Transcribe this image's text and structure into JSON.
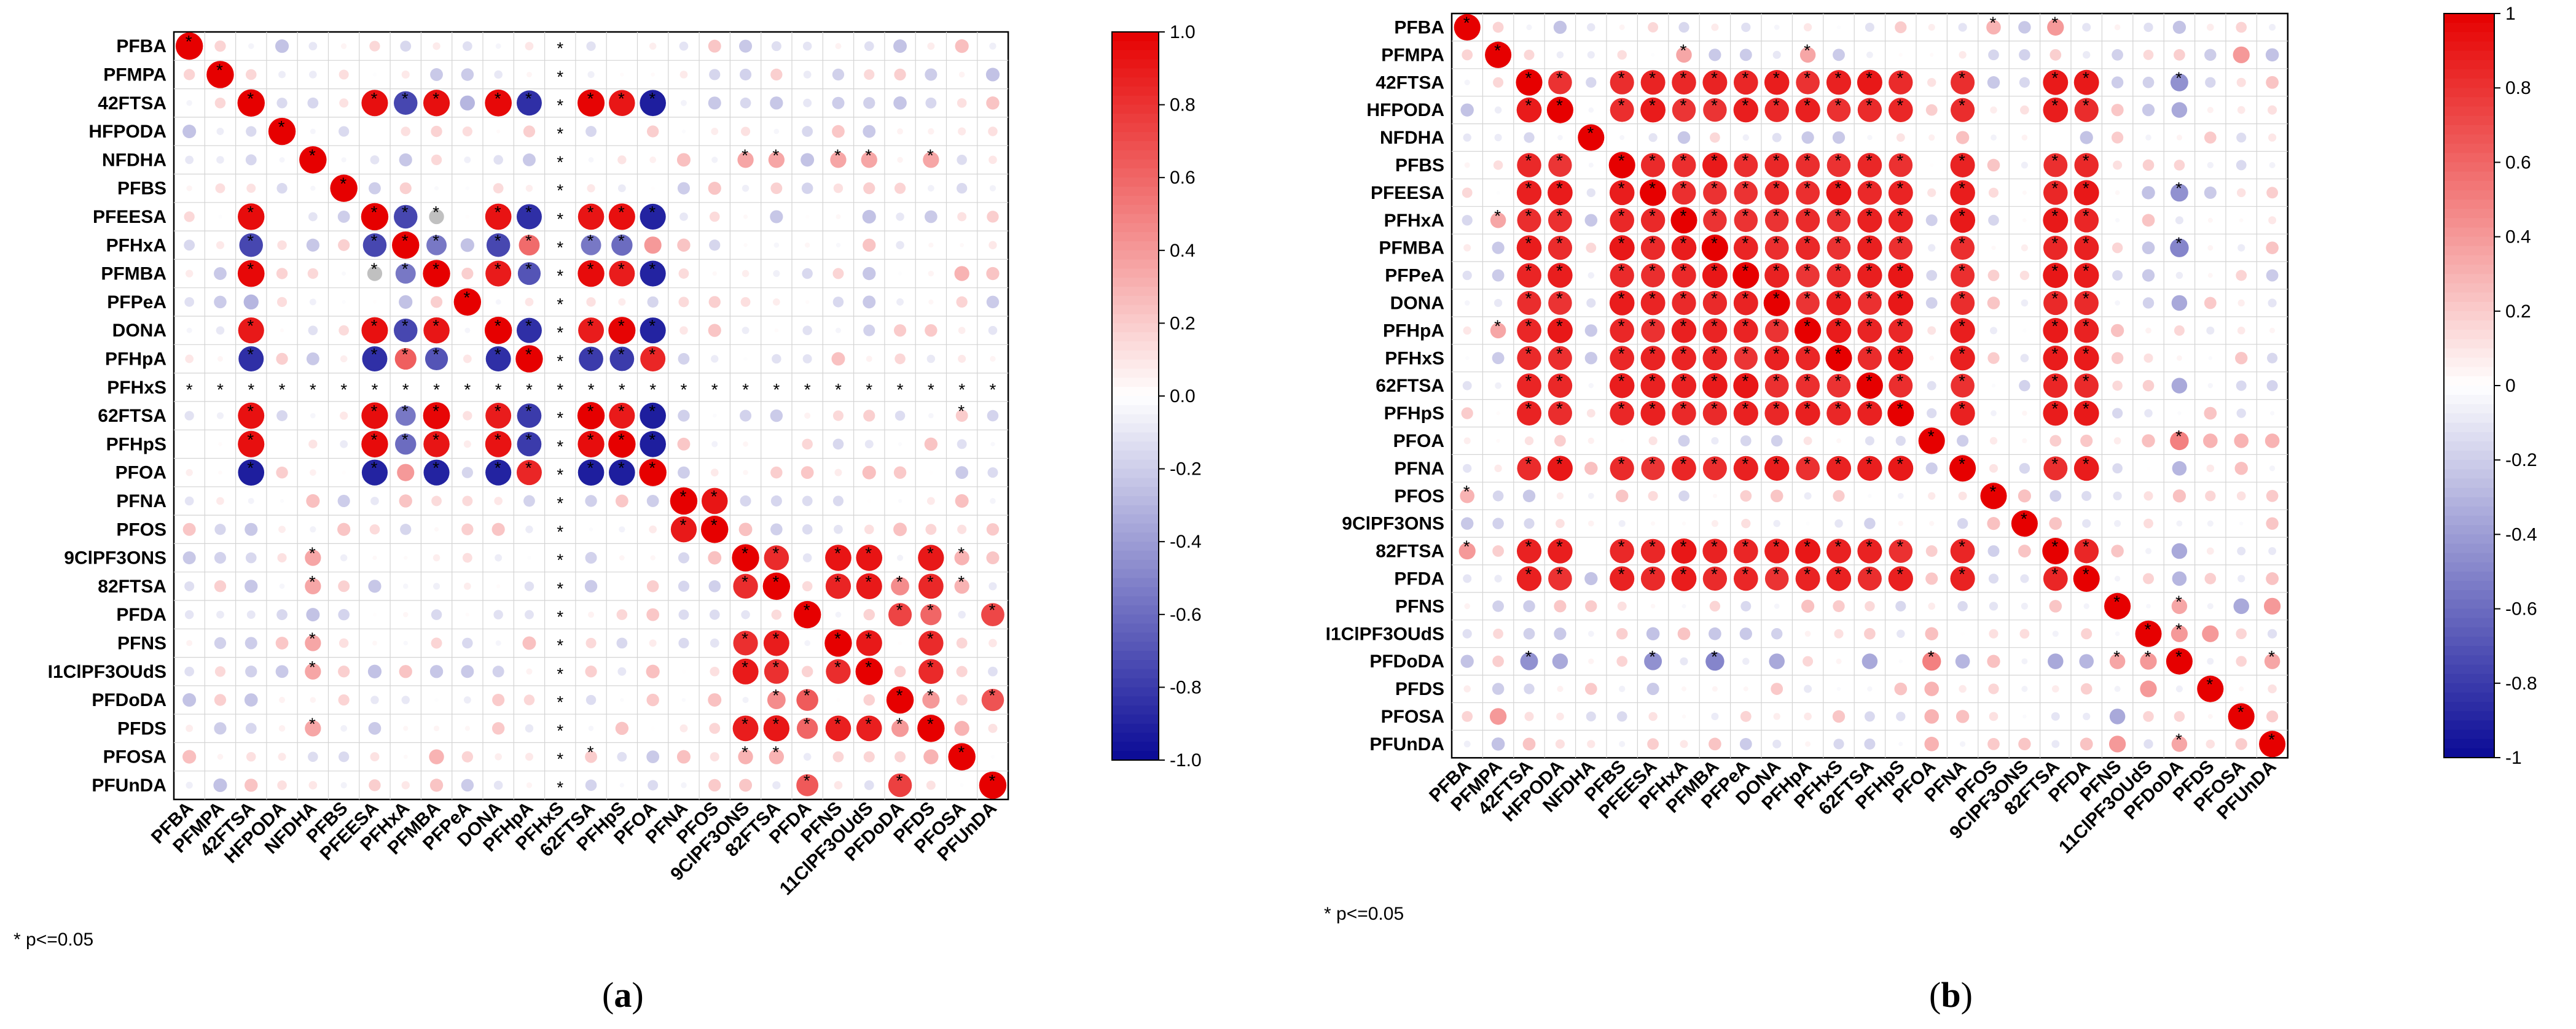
{
  "figure": {
    "panels": [
      {
        "label_open": "(",
        "label_letter": "a",
        "label_close": ")"
      },
      {
        "label_open": "(",
        "label_letter": "b",
        "label_close": ")"
      }
    ]
  },
  "chart_data": [
    {
      "type": "heatmap",
      "title": "",
      "variant": "correlation-circle-matrix",
      "footnote": "* p<=0.05",
      "colorbar": {
        "min": -1.0,
        "max": 1.0,
        "ticks": [
          "1.0",
          "0.8",
          "0.6",
          "0.4",
          "0.2",
          "0.0",
          "-0.2",
          "-0.4",
          "-0.6",
          "-0.8",
          "-1.0"
        ],
        "colors": {
          "neg": "#0a0a96",
          "zero": "#ffffff",
          "pos": "#e60000"
        }
      },
      "labels": [
        "PFBA",
        "PFMPA",
        "42FTSA",
        "HFPODA",
        "NFDHA",
        "PFBS",
        "PFEESA",
        "PFHxA",
        "PFMBA",
        "PFPeA",
        "DONA",
        "PFHpA",
        "PFHxS",
        "62FTSA",
        "PFHpS",
        "PFOA",
        "PFNA",
        "PFOS",
        "9ClPF3ONS",
        "82FTSA",
        "PFDA",
        "PFNS",
        "11ClPF3OUdS",
        "PFDoDA",
        "PFDS",
        "PFOSA",
        "PFUnDA"
      ],
      "row_labels": [
        "PFBA",
        "PFMPA",
        "42FTSA",
        "HFPODA",
        "NFDHA",
        "PFBS",
        "PFEESA",
        "PFHxA",
        "PFMBA",
        "PFPeA",
        "DONA",
        "PFHpA",
        "PFHxS",
        "62FTSA",
        "PFHpS",
        "PFOA",
        "PFNA",
        "PFOS",
        "9ClPF3ONS",
        "82FTSA",
        "PFDA",
        "PFNS",
        "I1ClPF3OUdS",
        "PFDoDA",
        "PFDS",
        "PFOSA",
        "PFUnDA"
      ],
      "col_labels": [
        "PFBA",
        "PFMPA",
        "42FTSA",
        "HFPODA",
        "NFDHA",
        "PFBS",
        "PFEESA",
        "PFHxA",
        "PFMBA",
        "PFPeA",
        "DONA",
        "PFHpA",
        "PFHxS",
        "62FTSA",
        "PFHpS",
        "PFOA",
        "PFNA",
        "PFOS",
        "9ClPF3ONS",
        "82FTSA",
        "PFDA",
        "PFNS",
        "11ClPF3OUdS",
        "PFDoDA",
        "PFDS",
        "PFOSA",
        "PFUnDA"
      ],
      "na_labels": [
        "PFHxS"
      ],
      "groups": [
        {
          "members": [
            "42FTSA",
            "PFEESA",
            "PFMBA",
            "DONA",
            "62FTSA",
            "PFHpS"
          ],
          "within": 0.93,
          "significant": true
        },
        {
          "members": [
            "PFHpA",
            "PFHxA"
          ],
          "within": 0.6,
          "significant": true
        },
        {
          "members": [
            "PFOA"
          ],
          "within": 0.9,
          "significant": true
        },
        {
          "members": [
            "PFNA",
            "PFOS"
          ],
          "within": 0.88,
          "significant": true
        },
        {
          "members": [
            "9ClPF3ONS",
            "82FTSA",
            "PFNS",
            "11ClPF3OUdS",
            "PFDS"
          ],
          "within": 0.87,
          "significant": true
        },
        {
          "members": [
            "PFDA",
            "PFDoDA",
            "PFUnDA"
          ],
          "within": 0.7,
          "significant": true
        }
      ],
      "pairs": [
        {
          "a": "PFOA",
          "b": "42FTSA",
          "v": -0.92,
          "s": true
        },
        {
          "a": "PFOA",
          "b": "PFEESA",
          "v": -0.9,
          "s": true
        },
        {
          "a": "PFOA",
          "b": "PFMBA",
          "v": -0.9,
          "s": true
        },
        {
          "a": "PFOA",
          "b": "DONA",
          "v": -0.9,
          "s": true
        },
        {
          "a": "PFOA",
          "b": "62FTSA",
          "v": -0.92,
          "s": true
        },
        {
          "a": "PFOA",
          "b": "PFHpS",
          "v": -0.92,
          "s": true
        },
        {
          "a": "PFOA",
          "b": "PFHxA",
          "v": 0.4,
          "s": false
        },
        {
          "a": "PFOA",
          "b": "PFHpA",
          "v": 0.85,
          "s": true
        },
        {
          "a": "PFHxA",
          "b": "42FTSA",
          "v": -0.75,
          "s": true
        },
        {
          "a": "PFHxA",
          "b": "PFEESA",
          "v": -0.75,
          "s": true
        },
        {
          "a": "PFHxA",
          "b": "PFMBA",
          "v": -0.55,
          "s": true
        },
        {
          "a": "PFHxA",
          "b": "DONA",
          "v": -0.75,
          "s": true
        },
        {
          "a": "PFHxA",
          "b": "62FTSA",
          "v": -0.55,
          "s": true
        },
        {
          "a": "PFHxA",
          "b": "PFHpS",
          "v": -0.6,
          "s": true
        },
        {
          "a": "PFHpA",
          "b": "42FTSA",
          "v": -0.85,
          "s": true
        },
        {
          "a": "PFHpA",
          "b": "PFEESA",
          "v": -0.85,
          "s": true
        },
        {
          "a": "PFHpA",
          "b": "PFMBA",
          "v": -0.7,
          "s": true
        },
        {
          "a": "PFHpA",
          "b": "DONA",
          "v": -0.85,
          "s": true
        },
        {
          "a": "PFHpA",
          "b": "62FTSA",
          "v": -0.8,
          "s": true
        },
        {
          "a": "PFHpA",
          "b": "PFHpS",
          "v": -0.8,
          "s": true
        },
        {
          "a": "PFMBA",
          "b": "PFEESA",
          "v": 0.3,
          "s": true,
          "gray": true
        },
        {
          "a": "PFPeA",
          "b": "42FTSA",
          "v": -0.3,
          "s": false
        },
        {
          "a": "PFPeA",
          "b": "PFHxA",
          "v": -0.25,
          "s": false
        },
        {
          "a": "NFDHA",
          "b": "9ClPF3ONS",
          "v": 0.35,
          "s": true
        },
        {
          "a": "NFDHA",
          "b": "82FTSA",
          "v": 0.35,
          "s": true
        },
        {
          "a": "NFDHA",
          "b": "PFNS",
          "v": 0.35,
          "s": true
        },
        {
          "a": "NFDHA",
          "b": "11ClPF3OUdS",
          "v": 0.35,
          "s": true
        },
        {
          "a": "NFDHA",
          "b": "PFDS",
          "v": 0.35,
          "s": true
        },
        {
          "a": "PFDoDA",
          "b": "82FTSA",
          "v": 0.45,
          "s": true
        },
        {
          "a": "PFDoDA",
          "b": "PFDS",
          "v": 0.4,
          "s": true
        },
        {
          "a": "PFDA",
          "b": "PFDS",
          "v": 0.6,
          "s": true
        },
        {
          "a": "PFOSA",
          "b": "9ClPF3ONS",
          "v": 0.3,
          "s": true
        },
        {
          "a": "PFOSA",
          "b": "82FTSA",
          "v": 0.3,
          "s": true
        },
        {
          "a": "PFOSA",
          "b": "62FTSA",
          "v": 0.2,
          "s": true
        },
        {
          "a": "PFOSA",
          "b": "PFBA",
          "v": 0.25,
          "s": false
        },
        {
          "a": "PFOSA",
          "b": "PFMBA",
          "v": 0.3,
          "s": false
        },
        {
          "a": "PFDS",
          "b": "PFOSA",
          "v": 0.3,
          "s": false
        }
      ]
    },
    {
      "type": "heatmap",
      "title": "",
      "variant": "correlation-circle-matrix",
      "footnote": "* p<=0.05",
      "colorbar": {
        "min": -1,
        "max": 1,
        "ticks": [
          "1",
          "0.8",
          "0.6",
          "0.4",
          "0.2",
          "0",
          "-0.2",
          "-0.4",
          "-0.6",
          "-0.8",
          "-1"
        ],
        "colors": {
          "neg": "#0a0a96",
          "zero": "#ffffff",
          "pos": "#e60000"
        }
      },
      "labels": [
        "PFBA",
        "PFMPA",
        "42FTSA",
        "HFPODA",
        "NFDHA",
        "PFBS",
        "PFEESA",
        "PFHxA",
        "PFMBA",
        "PFPeA",
        "DONA",
        "PFHpA",
        "PFHxS",
        "62FTSA",
        "PFHpS",
        "PFOA",
        "PFNA",
        "PFOS",
        "9ClPF3ONS",
        "82FTSA",
        "PFDA",
        "PFNS",
        "11ClPF3OUdS",
        "PFDoDA",
        "PFDS",
        "PFOSA",
        "PFUnDA"
      ],
      "row_labels": [
        "PFBA",
        "PFMPA",
        "42FTSA",
        "HFPODA",
        "NFDHA",
        "PFBS",
        "PFEESA",
        "PFHxA",
        "PFMBA",
        "PFPeA",
        "DONA",
        "PFHpA",
        "PFHxS",
        "62FTSA",
        "PFHpS",
        "PFOA",
        "PFNA",
        "PFOS",
        "9ClPF3ONS",
        "82FTSA",
        "PFDA",
        "PFNS",
        "I1ClPF3OUdS",
        "PFDoDA",
        "PFDS",
        "PFOSA",
        "PFUnDA"
      ],
      "col_labels": [
        "PFBA",
        "PFMPA",
        "42FTSA",
        "HFPODA",
        "NFDHA",
        "PFBS",
        "PFEESA",
        "PFHxA",
        "PFMBA",
        "PFPeA",
        "DONA",
        "PFHpA",
        "PFHxS",
        "62FTSA",
        "PFHpS",
        "PFOA",
        "PFNA",
        "PFOS",
        "9ClPF3ONS",
        "82FTSA",
        "PFDA",
        "PFNS",
        "11ClPF3OUdS",
        "PFDoDA",
        "PFDS",
        "PFOSA",
        "PFUnDA"
      ],
      "na_labels": [],
      "groups": [
        {
          "members": [
            "42FTSA",
            "HFPODA",
            "PFBS",
            "PFEESA",
            "PFHxA",
            "PFMBA",
            "PFPeA",
            "DONA",
            "PFHpA",
            "PFHxS",
            "62FTSA",
            "PFHpS",
            "PFNA",
            "82FTSA",
            "PFDA"
          ],
          "within": 0.85,
          "significant": true
        }
      ],
      "pairs": [
        {
          "a": "PFDoDA",
          "b": "42FTSA",
          "v": -0.45,
          "s": true
        },
        {
          "a": "PFDoDA",
          "b": "HFPODA",
          "v": -0.35,
          "s": false
        },
        {
          "a": "PFDoDA",
          "b": "PFEESA",
          "v": -0.45,
          "s": true
        },
        {
          "a": "PFDoDA",
          "b": "PFMBA",
          "v": -0.5,
          "s": true
        },
        {
          "a": "PFDoDA",
          "b": "DONA",
          "v": -0.35,
          "s": false
        },
        {
          "a": "PFDoDA",
          "b": "62FTSA",
          "v": -0.35,
          "s": false
        },
        {
          "a": "PFDoDA",
          "b": "PFOA",
          "v": 0.5,
          "s": true
        },
        {
          "a": "PFDoDA",
          "b": "PFNA",
          "v": -0.3,
          "s": false
        },
        {
          "a": "PFDoDA",
          "b": "82FTSA",
          "v": -0.35,
          "s": false
        },
        {
          "a": "PFDoDA",
          "b": "PFDA",
          "v": -0.3,
          "s": false
        },
        {
          "a": "PFDoDA",
          "b": "PFNS",
          "v": 0.35,
          "s": true
        },
        {
          "a": "PFDoDA",
          "b": "PFUnDA",
          "v": 0.35,
          "s": true
        },
        {
          "a": "PFDoDA",
          "b": "11ClPF3OUdS",
          "v": 0.4,
          "s": true
        },
        {
          "a": "PFBA",
          "b": "PFOS",
          "v": 0.3,
          "s": true
        },
        {
          "a": "PFBA",
          "b": "82FTSA",
          "v": 0.4,
          "s": true
        },
        {
          "a": "PFBA",
          "b": "PFHpS",
          "v": 0.2,
          "s": false
        },
        {
          "a": "PFMPA",
          "b": "PFHxA",
          "v": 0.35,
          "s": true
        },
        {
          "a": "PFMPA",
          "b": "PFHpA",
          "v": 0.35,
          "s": true
        },
        {
          "a": "PFMPA",
          "b": "PFOSA",
          "v": 0.4,
          "s": false
        },
        {
          "a": "PFOA",
          "b": "PFUnDA",
          "v": 0.3,
          "s": false
        },
        {
          "a": "PFOA",
          "b": "PFOSA",
          "v": 0.3,
          "s": false
        },
        {
          "a": "PFOA",
          "b": "PFDS",
          "v": 0.3,
          "s": false
        },
        {
          "a": "PFNS",
          "b": "PFOSA",
          "v": -0.35,
          "s": false
        },
        {
          "a": "PFNS",
          "b": "PFUnDA",
          "v": 0.4,
          "s": false
        },
        {
          "a": "PFDS",
          "b": "11ClPF3OUdS",
          "v": 0.4,
          "s": false
        },
        {
          "a": "PFUnDA",
          "b": "PFOSA",
          "v": 0.2,
          "s": false
        }
      ]
    }
  ]
}
